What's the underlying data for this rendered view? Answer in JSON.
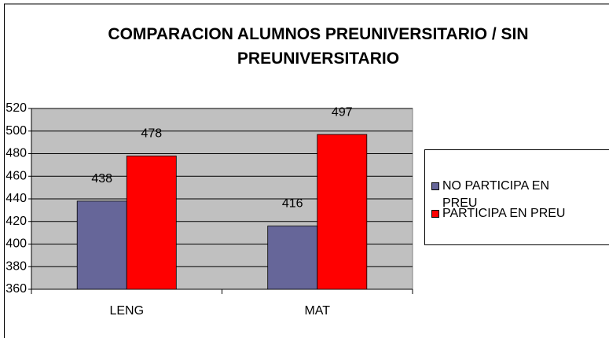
{
  "chart_data": {
    "type": "bar",
    "title": "COMPARACION ALUMNOS PREUNIVERSITARIO / SIN PREUNIVERSITARIO",
    "categories": [
      "LENG",
      "MAT"
    ],
    "series": [
      {
        "name": "NO PARTICIPA EN PREU",
        "color": "#666699",
        "values": [
          438,
          416
        ]
      },
      {
        "name": "PARTICIPA EN PREU",
        "color": "#ff0000",
        "values": [
          478,
          497
        ]
      }
    ],
    "ylim": [
      360,
      520
    ],
    "yticks": [
      360,
      380,
      400,
      420,
      440,
      460,
      480,
      500,
      520
    ],
    "grid": true,
    "legend": "right",
    "plot_background": "#c0c0c0"
  }
}
